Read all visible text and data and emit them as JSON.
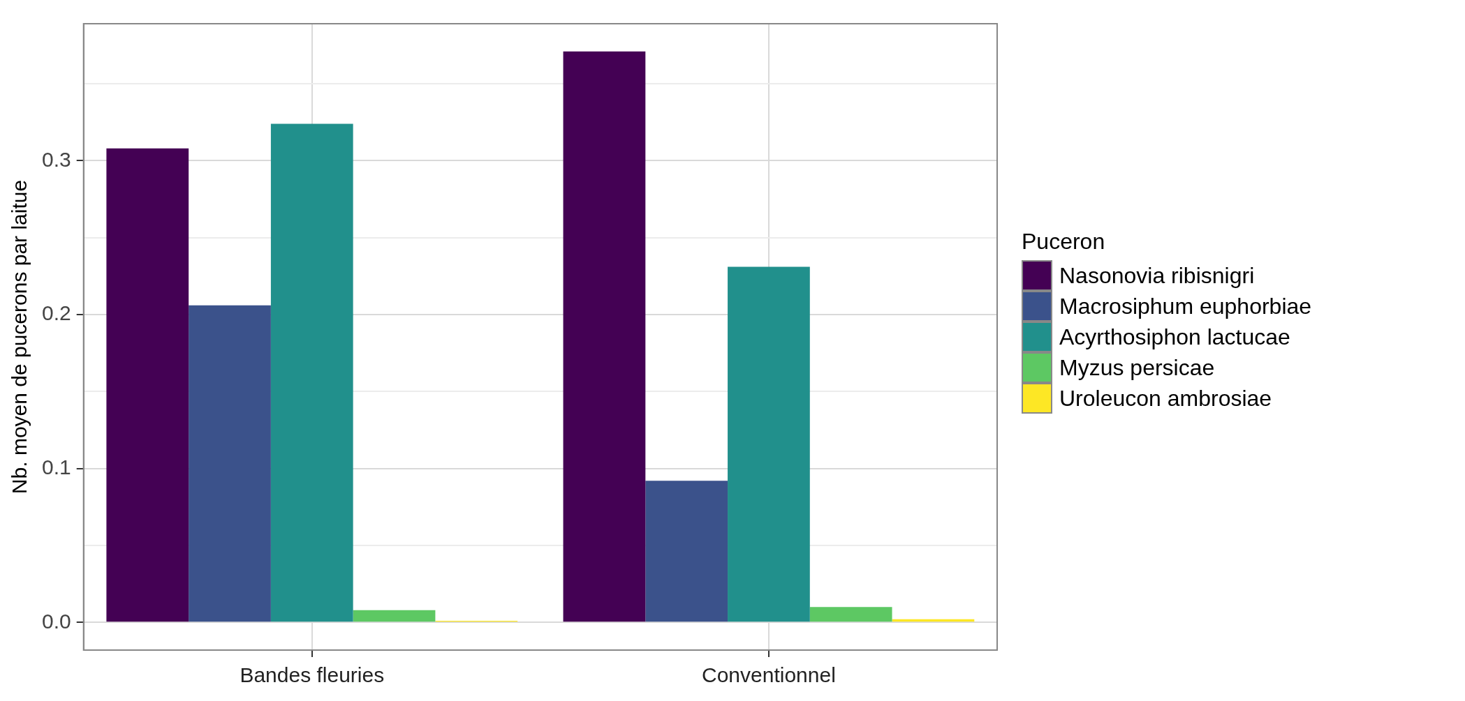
{
  "chart_data": {
    "type": "bar",
    "ylabel": "Nb. moyen de pucerons par laitue",
    "legend_title": "Puceron",
    "categories": [
      "Bandes fleuries",
      "Conventionnel"
    ],
    "series": [
      {
        "name": "Nasonovia ribisnigri",
        "color": "#440154",
        "values": [
          0.308,
          0.371
        ]
      },
      {
        "name": "Macrosiphum euphorbiae",
        "color": "#3b528b",
        "values": [
          0.206,
          0.092
        ]
      },
      {
        "name": "Acyrthosiphon lactucae",
        "color": "#21908c",
        "values": [
          0.324,
          0.231
        ]
      },
      {
        "name": "Myzus persicae",
        "color": "#5dc863",
        "values": [
          0.008,
          0.01
        ]
      },
      {
        "name": "Uroleucon ambrosiae",
        "color": "#fde725",
        "values": [
          0.001,
          0.002
        ]
      }
    ],
    "ylim": [
      -0.018,
      0.389
    ],
    "yticks": [
      {
        "value": 0,
        "label": "0.0"
      },
      {
        "value": 0.05,
        "label": null
      },
      {
        "value": 0.1,
        "label": "0.1"
      },
      {
        "value": 0.15,
        "label": null
      },
      {
        "value": 0.2,
        "label": "0.2"
      },
      {
        "value": 0.25,
        "label": null
      },
      {
        "value": 0.3,
        "label": "0.3"
      },
      {
        "value": 0.35,
        "label": null
      }
    ],
    "grid": true,
    "legend": "right"
  }
}
